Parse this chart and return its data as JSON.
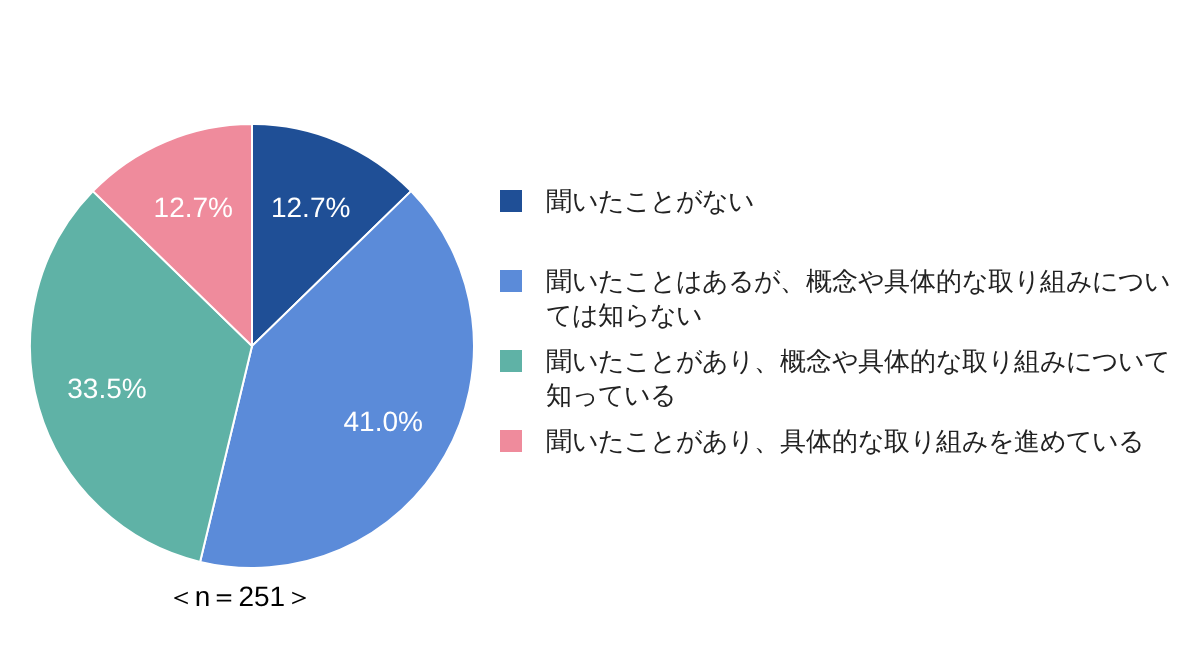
{
  "chart_data": {
    "type": "pie",
    "categories": [
      "聞いたことがない",
      "聞いたことはあるが、概念や具体的な取り組みについては知らない",
      "聞いたことがあり、概念や具体的な取り組みについて知っている",
      "聞いたことがあり、具体的な取り組みを進めている"
    ],
    "values": [
      12.7,
      41.0,
      33.5,
      12.7
    ],
    "colors": [
      "#1f4f96",
      "#5b8bd9",
      "#5fb2a6",
      "#ef8b9c"
    ],
    "value_labels": [
      "12.7%",
      "41.0%",
      "33.5%",
      "12.7%"
    ],
    "legend": "right",
    "annotations": [
      "＜n＝251＞"
    ]
  }
}
